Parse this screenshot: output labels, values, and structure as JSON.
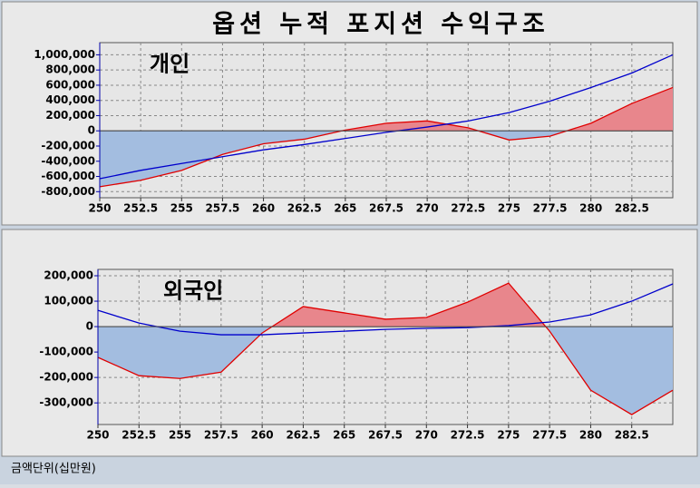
{
  "title": "옵션 누적 포지션 수익구조",
  "footnote": "금액단위(십만원)",
  "chart_data": [
    {
      "type": "line",
      "annotation": "개인",
      "grid": true,
      "x": [
        250,
        252.5,
        255,
        257.5,
        260,
        262.5,
        265,
        267.5,
        270,
        272.5,
        275,
        277.5,
        280,
        282.5,
        285
      ],
      "xlim": [
        250,
        285
      ],
      "xticks": [
        250,
        252.5,
        255,
        257.5,
        260,
        262.5,
        265,
        267.5,
        270,
        272.5,
        275,
        277.5,
        280,
        282.5
      ],
      "ylim": [
        -880000,
        1160000
      ],
      "yticks": [
        {
          "value": -800000,
          "label": "-800,000"
        },
        {
          "value": -600000,
          "label": "-600,000"
        },
        {
          "value": -400000,
          "label": "-400,000"
        },
        {
          "value": -200000,
          "label": "-200,000"
        },
        0,
        {
          "value": 200000,
          "label": "200,000"
        },
        {
          "value": 400000,
          "label": "400,000"
        },
        {
          "value": 600000,
          "label": "600,000"
        },
        {
          "value": 800000,
          "label": "800,000"
        },
        {
          "value": 1000000,
          "label": "1,000,000"
        }
      ],
      "series": [
        {
          "color": "#e00000",
          "fill_positive": "#e8868c",
          "fill_negative": "#a3bde0",
          "values": [
            -735000,
            -650000,
            -520000,
            -310000,
            -170000,
            -110000,
            10000,
            100000,
            130000,
            40000,
            -120000,
            -70000,
            100000,
            360000,
            570000
          ]
        },
        {
          "color": "#0000cc",
          "values": [
            -630000,
            -520000,
            -430000,
            -340000,
            -250000,
            -180000,
            -100000,
            -20000,
            50000,
            130000,
            240000,
            390000,
            570000,
            760000,
            1000000
          ]
        }
      ]
    },
    {
      "type": "line",
      "annotation": "외국인",
      "grid": true,
      "x": [
        250,
        252.5,
        255,
        257.5,
        260,
        262.5,
        265,
        267.5,
        270,
        272.5,
        275,
        277.5,
        280,
        282.5,
        285
      ],
      "xlim": [
        250,
        285
      ],
      "xticks": [
        250,
        252.5,
        255,
        257.5,
        260,
        262.5,
        265,
        267.5,
        270,
        272.5,
        275,
        277.5,
        280,
        282.5
      ],
      "ylim": [
        -385000,
        225000
      ],
      "yticks": [
        {
          "value": -300000,
          "label": "-300,000"
        },
        {
          "value": -200000,
          "label": "-200,000"
        },
        {
          "value": -100000,
          "label": "-100,000"
        },
        0,
        {
          "value": 100000,
          "label": "100,000"
        },
        {
          "value": 200000,
          "label": "200,000"
        }
      ],
      "series": [
        {
          "color": "#e00000",
          "fill_positive": "#e8868c",
          "fill_negative": "#a3bde0",
          "values": [
            -121000,
            -193000,
            -204000,
            -179000,
            -25000,
            79000,
            54000,
            29000,
            36000,
            96000,
            171000,
            -18000,
            -250000,
            -346000,
            -250000
          ]
        },
        {
          "color": "#0000cc",
          "values": [
            64000,
            14000,
            -18000,
            -32000,
            -32000,
            -25000,
            -18000,
            -11000,
            -7000,
            -4000,
            4000,
            18000,
            46000,
            100000,
            168000
          ]
        }
      ]
    }
  ]
}
